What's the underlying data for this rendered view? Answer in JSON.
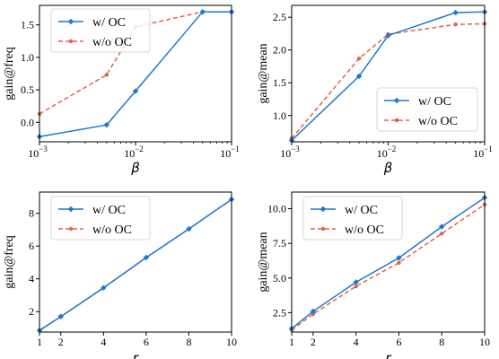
{
  "colors": {
    "series_oc": "#1f77d0",
    "series_no_oc": "#e0654a",
    "frame": "#000000",
    "legend_border": "#cccccc"
  },
  "chart_data": [
    {
      "type": "line",
      "xscale": "log",
      "xlabel": "β",
      "ylabel": "gain@freq",
      "xlim": [
        0.001,
        0.1
      ],
      "ylim": [
        -0.3,
        1.8
      ],
      "xticks": [
        {
          "value": 0.001,
          "base": "10",
          "exp": "−3"
        },
        {
          "value": 0.01,
          "base": "10",
          "exp": "−2"
        },
        {
          "value": 0.1,
          "base": "10",
          "exp": "−1"
        }
      ],
      "yticks": [
        "0.0",
        "0.5",
        "1.0",
        "1.5"
      ],
      "ytick_values": [
        0.0,
        0.5,
        1.0,
        1.5
      ],
      "legend_position": "top-left",
      "grid": false,
      "series": [
        {
          "name": "w/ OC",
          "style": "solid",
          "marker": "diamond",
          "x": [
            0.001,
            0.005,
            0.01,
            0.05,
            0.1
          ],
          "y": [
            -0.22,
            -0.04,
            0.48,
            1.7,
            1.7
          ]
        },
        {
          "name": "w/o OC",
          "style": "dashed",
          "marker": "dot",
          "x": [
            0.001,
            0.005,
            0.01,
            0.05,
            0.1
          ],
          "y": [
            0.13,
            0.73,
            1.47,
            1.7,
            1.7
          ]
        }
      ]
    },
    {
      "type": "line",
      "xscale": "log",
      "xlabel": "β",
      "ylabel": "gain@mean",
      "xlim": [
        0.001,
        0.1
      ],
      "ylim": [
        0.6,
        2.68
      ],
      "xticks": [
        {
          "value": 0.001,
          "base": "10",
          "exp": "−3"
        },
        {
          "value": 0.01,
          "base": "10",
          "exp": "−2"
        },
        {
          "value": 0.1,
          "base": "10",
          "exp": "−1"
        }
      ],
      "yticks": [
        "1.0",
        "1.5",
        "2.0",
        "2.5"
      ],
      "ytick_values": [
        1.0,
        1.5,
        2.0,
        2.5
      ],
      "legend_position": "bottom-right",
      "grid": false,
      "series": [
        {
          "name": "w/ OC",
          "style": "solid",
          "marker": "diamond",
          "x": [
            0.001,
            0.005,
            0.01,
            0.05,
            0.1
          ],
          "y": [
            0.62,
            1.6,
            2.22,
            2.57,
            2.58
          ]
        },
        {
          "name": "w/o OC",
          "style": "dashed",
          "marker": "dot",
          "x": [
            0.001,
            0.005,
            0.01,
            0.05,
            0.1
          ],
          "y": [
            0.65,
            1.87,
            2.24,
            2.39,
            2.4
          ]
        }
      ]
    },
    {
      "type": "line",
      "xscale": "linear",
      "xlabel": "r",
      "ylabel": "gain@freq",
      "xlim": [
        1,
        10
      ],
      "ylim": [
        0.75,
        9.3
      ],
      "xticks": [
        {
          "value": 1,
          "label": "1"
        },
        {
          "value": 2,
          "label": "2"
        },
        {
          "value": 4,
          "label": "4"
        },
        {
          "value": 6,
          "label": "6"
        },
        {
          "value": 8,
          "label": "8"
        },
        {
          "value": 10,
          "label": "10"
        }
      ],
      "yticks": [
        "2",
        "4",
        "6",
        "8"
      ],
      "ytick_values": [
        2,
        4,
        6,
        8
      ],
      "legend_position": "top-left",
      "grid": false,
      "series": [
        {
          "name": "w/ OC",
          "style": "solid",
          "marker": "diamond",
          "x": [
            1,
            2,
            4,
            6,
            8,
            10
          ],
          "y": [
            0.85,
            1.7,
            3.45,
            5.3,
            7.05,
            8.85
          ]
        },
        {
          "name": "w/o OC",
          "style": "dashed",
          "marker": "dot",
          "x": [
            1,
            2,
            4,
            6,
            8,
            10
          ],
          "y": [
            0.85,
            1.7,
            3.45,
            5.3,
            7.05,
            8.85
          ]
        }
      ]
    },
    {
      "type": "line",
      "xscale": "linear",
      "xlabel": "r",
      "ylabel": "gain@mean",
      "xlim": [
        1,
        10
      ],
      "ylim": [
        1.1,
        11.2
      ],
      "xticks": [
        {
          "value": 1,
          "label": "1"
        },
        {
          "value": 2,
          "label": "2"
        },
        {
          "value": 4,
          "label": "4"
        },
        {
          "value": 6,
          "label": "6"
        },
        {
          "value": 8,
          "label": "8"
        },
        {
          "value": 10,
          "label": "10"
        }
      ],
      "yticks": [
        "2.5",
        "5.0",
        "7.5",
        "10.0"
      ],
      "ytick_values": [
        2.5,
        5.0,
        7.5,
        10.0
      ],
      "legend_position": "top-left",
      "grid": false,
      "series": [
        {
          "name": "w/ OC",
          "style": "solid",
          "marker": "diamond",
          "x": [
            1,
            2,
            4,
            6,
            8,
            10
          ],
          "y": [
            1.35,
            2.6,
            4.7,
            6.45,
            8.7,
            10.8
          ]
        },
        {
          "name": "w/o OC",
          "style": "dashed",
          "marker": "dot",
          "x": [
            1,
            2,
            4,
            6,
            8,
            10
          ],
          "y": [
            1.25,
            2.4,
            4.4,
            6.1,
            8.2,
            10.3
          ]
        }
      ]
    }
  ]
}
